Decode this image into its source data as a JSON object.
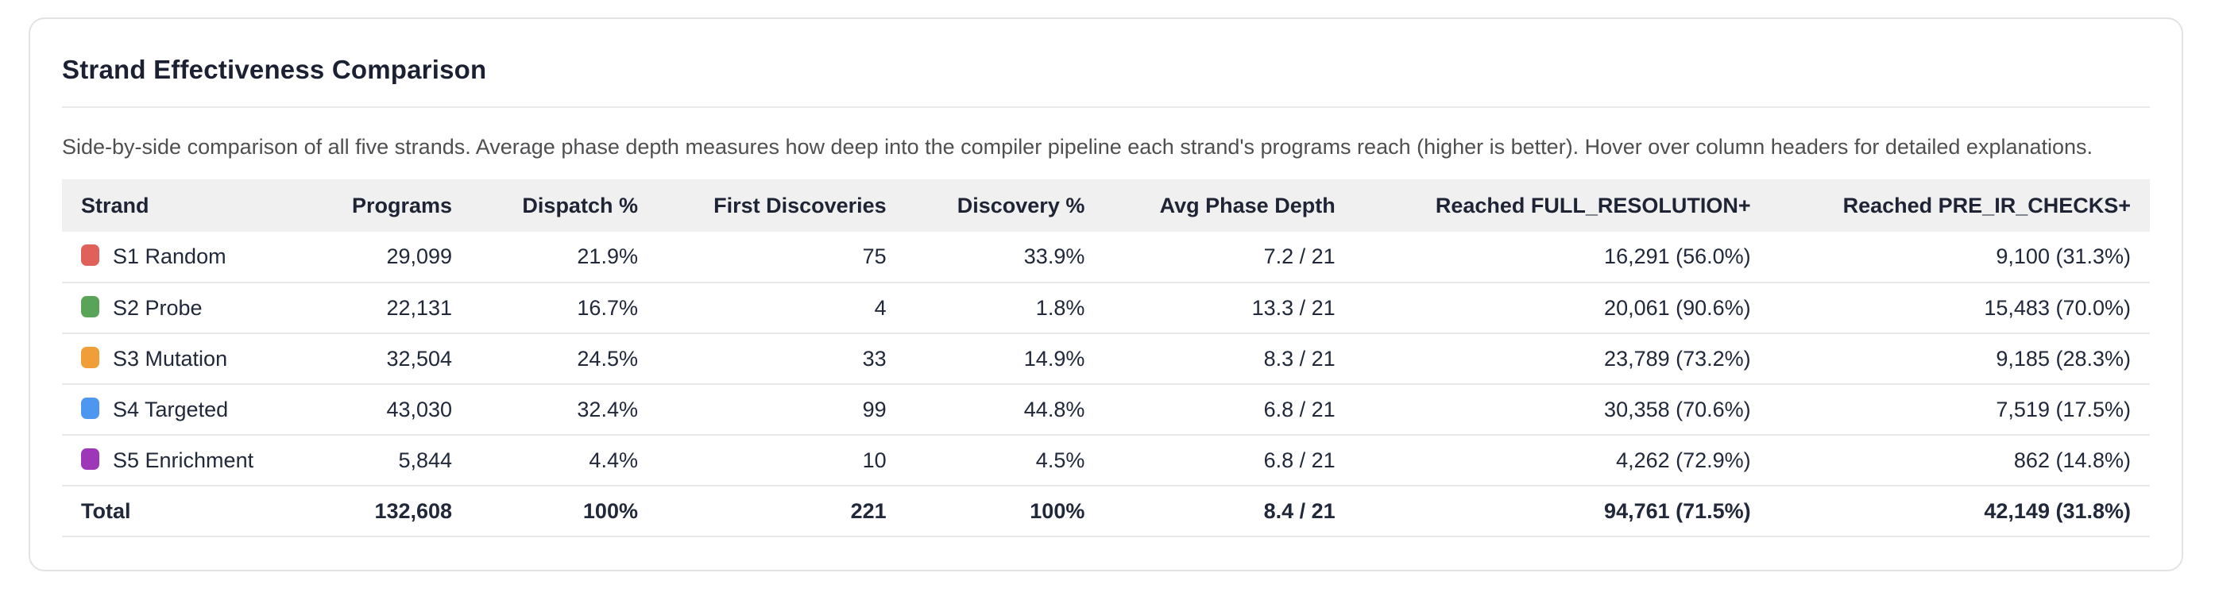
{
  "card": {
    "title": "Strand Effectiveness Comparison",
    "subtitle": "Side-by-side comparison of all five strands. Average phase depth measures how deep into the compiler pipeline each strand's programs reach (higher is better). Hover over column headers for detailed explanations."
  },
  "chart_data": {
    "type": "table",
    "title": "Strand Effectiveness Comparison",
    "columns": [
      "Strand",
      "Programs",
      "Dispatch %",
      "First Discoveries",
      "Discovery %",
      "Avg Phase Depth",
      "Reached FULL_RESOLUTION+",
      "Reached PRE_IR_CHECKS+"
    ],
    "rows": [
      {
        "label": "S1 Random",
        "swatch_color": "#e0605a",
        "cells": [
          "29,099",
          "21.9%",
          "75",
          "33.9%",
          "7.2 / 21",
          "16,291 (56.0%)",
          "9,100 (31.3%)"
        ]
      },
      {
        "label": "S2 Probe",
        "swatch_color": "#5aa45a",
        "cells": [
          "22,131",
          "16.7%",
          "4",
          "1.8%",
          "13.3 / 21",
          "20,061 (90.6%)",
          "15,483 (70.0%)"
        ]
      },
      {
        "label": "S3 Mutation",
        "swatch_color": "#f09e38",
        "cells": [
          "32,504",
          "24.5%",
          "33",
          "14.9%",
          "8.3 / 21",
          "23,789 (73.2%)",
          "9,185 (28.3%)"
        ]
      },
      {
        "label": "S4 Targeted",
        "swatch_color": "#4e97f0",
        "cells": [
          "43,030",
          "32.4%",
          "99",
          "44.8%",
          "6.8 / 21",
          "30,358 (70.6%)",
          "7,519 (17.5%)"
        ]
      },
      {
        "label": "S5 Enrichment",
        "swatch_color": "#9d36b7",
        "cells": [
          "5,844",
          "4.4%",
          "10",
          "4.5%",
          "6.8 / 21",
          "4,262 (72.9%)",
          "862 (14.8%)"
        ]
      }
    ],
    "total": {
      "label": "Total",
      "cells": [
        "132,608",
        "100%",
        "221",
        "100%",
        "8.4 / 21",
        "94,761 (71.5%)",
        "42,149 (31.8%)"
      ]
    },
    "column_widths_pct": [
      10.2,
      9.4,
      8.9,
      11.9,
      9.5,
      12.0,
      19.9,
      18.2
    ]
  }
}
